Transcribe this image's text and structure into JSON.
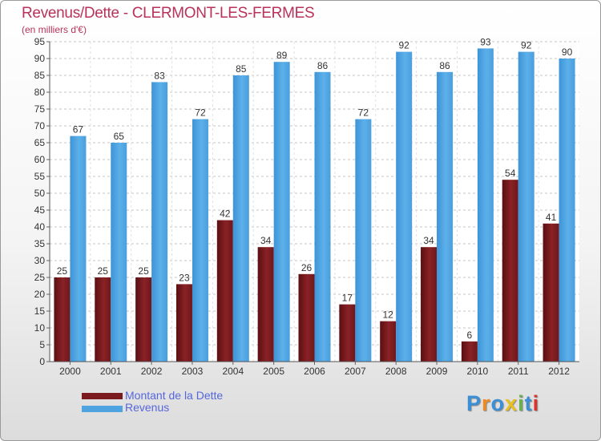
{
  "header": {
    "title": "Revenus/Dette - CLERMONT-LES-FERMES",
    "subtitle": "(en milliers d'€)"
  },
  "chart_data": {
    "type": "bar",
    "categories": [
      "2000",
      "2001",
      "2002",
      "2003",
      "2004",
      "2005",
      "2006",
      "2007",
      "2008",
      "2009",
      "2010",
      "2011",
      "2012"
    ],
    "series": [
      {
        "name": "Montant de la Dette",
        "color": "#7a1a1e",
        "values": [
          25,
          25,
          25,
          23,
          42,
          34,
          26,
          17,
          12,
          34,
          6,
          54,
          41
        ]
      },
      {
        "name": "Revenus",
        "color": "#4ea3e0",
        "values": [
          67,
          65,
          83,
          72,
          85,
          89,
          86,
          72,
          92,
          86,
          93,
          92,
          90
        ]
      }
    ],
    "ylim": [
      0,
      95
    ],
    "ytick_step": 5,
    "grid": true,
    "legend_position": "bottom-left"
  },
  "legend": {
    "debt_label": "Montant de la Dette",
    "revenue_label": "Revenus"
  },
  "logo": {
    "letters": [
      "P",
      "r",
      "o",
      "x",
      "i",
      "t",
      "i"
    ],
    "colors": [
      "#3b8fd6",
      "#f08a1c",
      "#3b8fd6",
      "#e8c020",
      "#6ab04c",
      "#3b8fd6",
      "#d9342b"
    ]
  }
}
